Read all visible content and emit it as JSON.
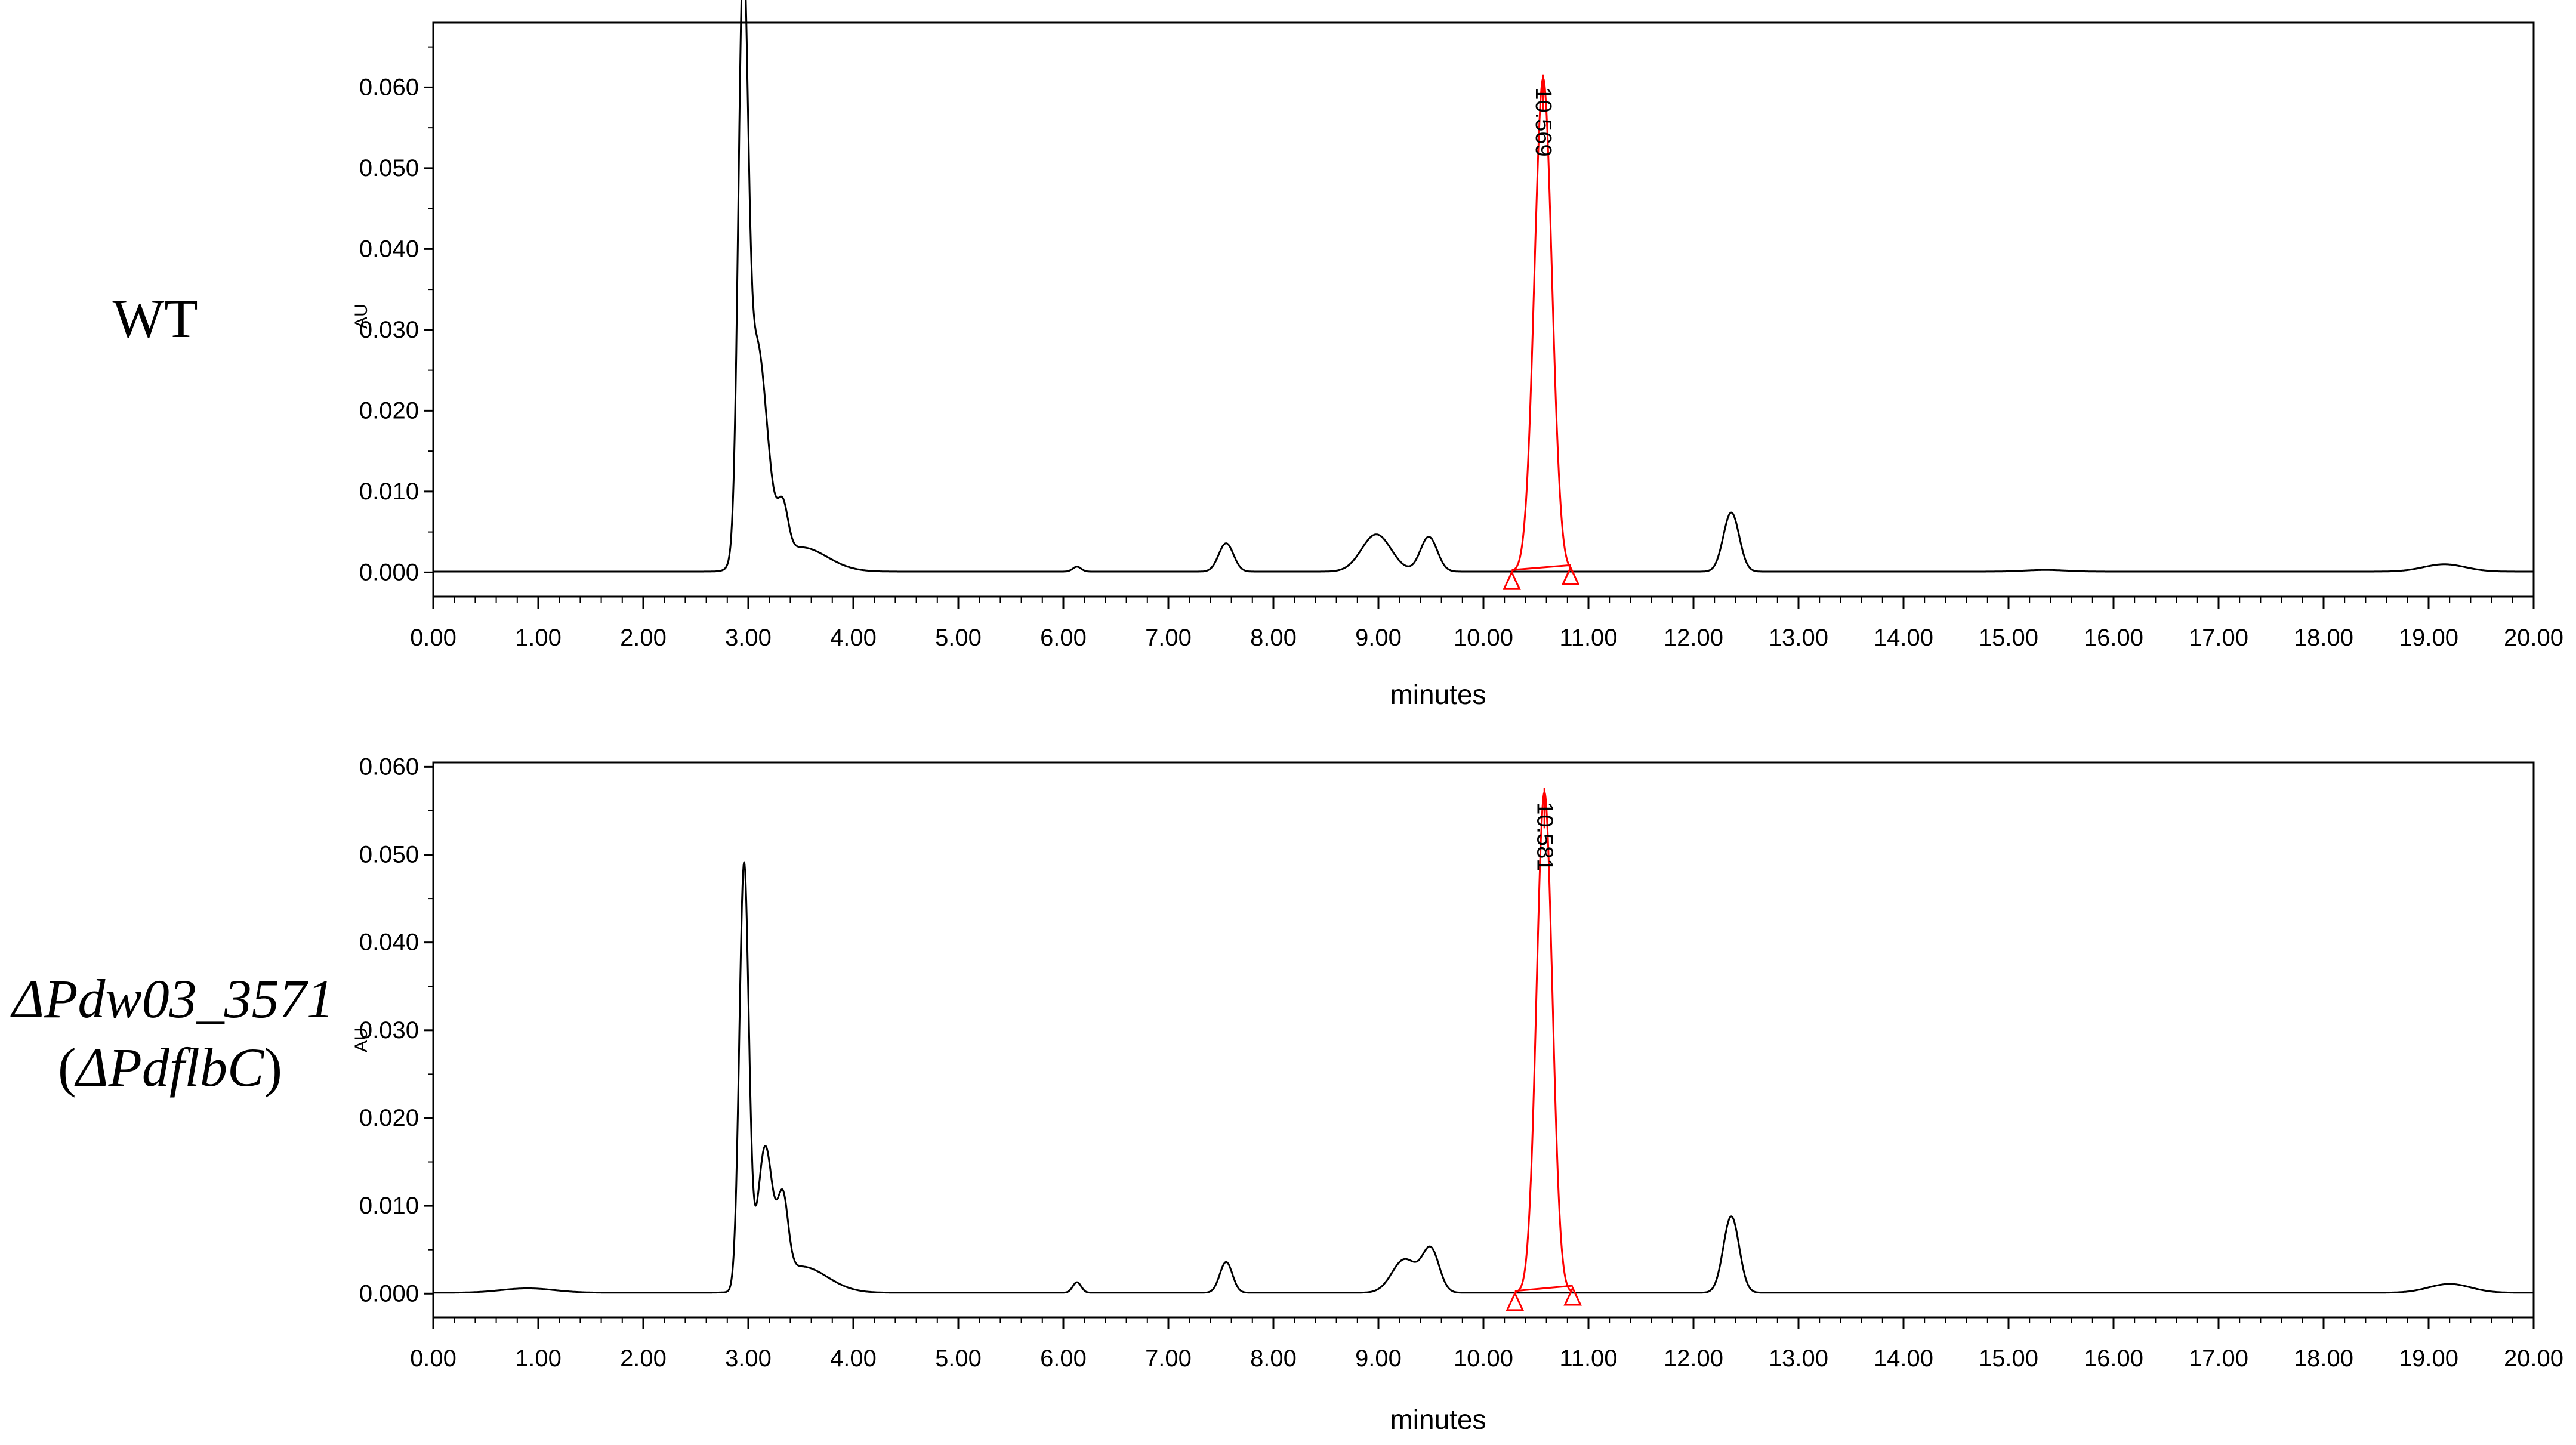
{
  "chart_data": [
    {
      "type": "line",
      "sample_label": "WT",
      "xlabel": "minutes",
      "ylabel": "AU",
      "xlim": [
        0,
        20
      ],
      "ylim": [
        -0.003,
        0.068
      ],
      "x_ticks": [
        "0.00",
        "1.00",
        "2.00",
        "3.00",
        "4.00",
        "5.00",
        "6.00",
        "7.00",
        "8.00",
        "9.00",
        "10.00",
        "11.00",
        "12.00",
        "13.00",
        "14.00",
        "15.00",
        "16.00",
        "17.00",
        "18.00",
        "19.00",
        "20.00"
      ],
      "y_ticks": [
        "0.000",
        "0.010",
        "0.020",
        "0.030",
        "0.040",
        "0.050",
        "0.060"
      ],
      "peaks": [
        {
          "rt": 2.95,
          "height": 0.0646,
          "width": 0.045
        },
        {
          "rt": 3.08,
          "height": 0.0275,
          "width": 0.1
        },
        {
          "rt": 3.33,
          "height": 0.0055,
          "width": 0.05
        },
        {
          "rt": 3.5,
          "height": 0.003,
          "width": 0.25
        },
        {
          "rt": 6.13,
          "height": 0.0006,
          "width": 0.04
        },
        {
          "rt": 7.55,
          "height": 0.0035,
          "width": 0.07
        },
        {
          "rt": 8.98,
          "height": 0.0046,
          "width": 0.14
        },
        {
          "rt": 9.48,
          "height": 0.0043,
          "width": 0.08
        },
        {
          "rt": 10.569,
          "height": 0.061,
          "width": 0.083,
          "highlight": true
        },
        {
          "rt": 12.36,
          "height": 0.0073,
          "width": 0.075
        },
        {
          "rt": 15.35,
          "height": 0.0002,
          "width": 0.2
        },
        {
          "rt": 19.15,
          "height": 0.0009,
          "width": 0.2
        }
      ],
      "peak_label": "10.569",
      "peak_start": 10.27,
      "peak_end": 10.83
    },
    {
      "type": "line",
      "sample_label_line1": "ΔPdw03_3571",
      "sample_label_line2_open": "(",
      "sample_label_line2_italic": "ΔPdflbC",
      "sample_label_line2_close": ")",
      "xlabel": "minutes",
      "ylabel": "AU",
      "xlim": [
        0,
        20
      ],
      "ylim": [
        -0.0027,
        0.0605
      ],
      "x_ticks": [
        "0.00",
        "1.00",
        "2.00",
        "3.00",
        "4.00",
        "5.00",
        "6.00",
        "7.00",
        "8.00",
        "9.00",
        "10.00",
        "11.00",
        "12.00",
        "13.00",
        "14.00",
        "15.00",
        "16.00",
        "17.00",
        "18.00",
        "19.00",
        "20.00"
      ],
      "y_ticks": [
        "0.000",
        "0.010",
        "0.020",
        "0.030",
        "0.040",
        "0.050",
        "0.060"
      ],
      "peaks": [
        {
          "rt": 0.9,
          "height": 0.0005,
          "width": 0.25
        },
        {
          "rt": 2.96,
          "height": 0.0485,
          "width": 0.045
        },
        {
          "rt": 3.16,
          "height": 0.0155,
          "width": 0.07
        },
        {
          "rt": 3.33,
          "height": 0.0085,
          "width": 0.05
        },
        {
          "rt": 3.5,
          "height": 0.003,
          "width": 0.25
        },
        {
          "rt": 6.13,
          "height": 0.0012,
          "width": 0.04
        },
        {
          "rt": 7.55,
          "height": 0.0035,
          "width": 0.06
        },
        {
          "rt": 9.25,
          "height": 0.0038,
          "width": 0.12
        },
        {
          "rt": 9.5,
          "height": 0.0048,
          "width": 0.08
        },
        {
          "rt": 10.581,
          "height": 0.057,
          "width": 0.075,
          "highlight": true
        },
        {
          "rt": 12.36,
          "height": 0.0087,
          "width": 0.075
        },
        {
          "rt": 19.2,
          "height": 0.001,
          "width": 0.2
        }
      ],
      "peak_label": "10.581",
      "peak_start": 10.3,
      "peak_end": 10.85
    }
  ]
}
